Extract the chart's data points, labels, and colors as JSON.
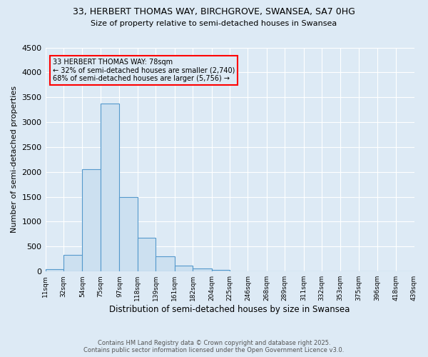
{
  "title_line1": "33, HERBERT THOMAS WAY, BIRCHGROVE, SWANSEA, SA7 0HG",
  "title_line2": "Size of property relative to semi-detached houses in Swansea",
  "xlabel": "Distribution of semi-detached houses by size in Swansea",
  "ylabel": "Number of semi-detached properties",
  "bin_labels": [
    "11sqm",
    "32sqm",
    "54sqm",
    "75sqm",
    "97sqm",
    "118sqm",
    "139sqm",
    "161sqm",
    "182sqm",
    "204sqm",
    "225sqm",
    "246sqm",
    "268sqm",
    "289sqm",
    "311sqm",
    "332sqm",
    "353sqm",
    "375sqm",
    "396sqm",
    "418sqm",
    "439sqm"
  ],
  "bin_edges": [
    11,
    32,
    54,
    75,
    97,
    118,
    139,
    161,
    182,
    204,
    225,
    246,
    268,
    289,
    311,
    332,
    353,
    375,
    396,
    418,
    439
  ],
  "bar_heights": [
    50,
    330,
    2060,
    3380,
    1500,
    680,
    310,
    120,
    60,
    30,
    10,
    8,
    5,
    3,
    2,
    2,
    1,
    1,
    0,
    0
  ],
  "bar_color": "#cce0f0",
  "bar_edge_color": "#5599cc",
  "property_size": 78,
  "annotation_title": "33 HERBERT THOMAS WAY: 78sqm",
  "annotation_line2": "← 32% of semi-detached houses are smaller (2,740)",
  "annotation_line3": "68% of semi-detached houses are larger (5,756) →",
  "annotation_box_color": "#ff0000",
  "ylim": [
    0,
    4500
  ],
  "yticks": [
    0,
    500,
    1000,
    1500,
    2000,
    2500,
    3000,
    3500,
    4000,
    4500
  ],
  "background_color": "#ddeaf5",
  "grid_color": "#ffffff",
  "footer_line1": "Contains HM Land Registry data © Crown copyright and database right 2025.",
  "footer_line2": "Contains public sector information licensed under the Open Government Licence v3.0."
}
